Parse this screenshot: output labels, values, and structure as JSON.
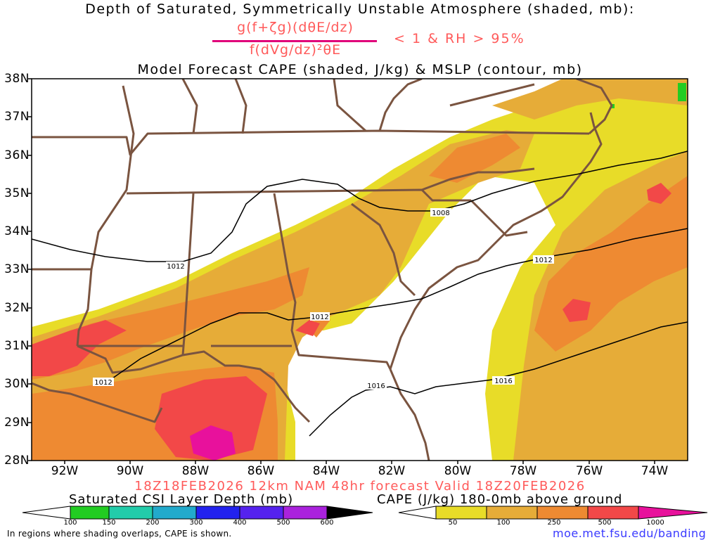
{
  "title": {
    "line1": "Depth of Saturated, Symmetrically Unstable Atmosphere (shaded, mb):",
    "numerator": "g(f+ζg)(dθE/dz)",
    "denominator": "f(dVg/dz)²θE",
    "condition": "< 1 & RH > 95%",
    "line3": "Model Forecast CAPE (shaded, J/kg) & MSLP (contour, mb)"
  },
  "map": {
    "lat_labels": [
      "38N",
      "37N",
      "36N",
      "35N",
      "34N",
      "33N",
      "32N",
      "31N",
      "30N",
      "29N",
      "28N"
    ],
    "lon_labels": [
      "92W",
      "90W",
      "88W",
      "86W",
      "84W",
      "82W",
      "80W",
      "78W",
      "76W",
      "74W"
    ],
    "isobar_labels": [
      {
        "id": "a",
        "text": "1012"
      },
      {
        "id": "b",
        "text": "1012"
      },
      {
        "id": "c",
        "text": "1012"
      },
      {
        "id": "d",
        "text": "1008"
      },
      {
        "id": "e",
        "text": "1016"
      },
      {
        "id": "f",
        "text": "1016"
      }
    ],
    "colors": {
      "border": "#7a5440",
      "isobar": "#000000",
      "cape_50": "#e8dc28",
      "cape_100": "#e6ac38",
      "cape_250": "#ee8a32",
      "cape_500": "#f24848",
      "cape_1000": "#e8119c"
    }
  },
  "valid_text": "18Z18FEB2026 12km NAM 48hr forecast Valid 18Z20FEB2026",
  "colorbar_csi": {
    "title": "Saturated CSI Layer Depth (mb)",
    "labels": [
      "100",
      "150",
      "200",
      "300",
      "400",
      "500",
      "600"
    ],
    "colors": [
      "#ffffff",
      "#22cc22",
      "#22ccaa",
      "#22aacc",
      "#2222ee",
      "#5522ee",
      "#aa22dd",
      "#000000"
    ]
  },
  "colorbar_cape": {
    "title": "CAPE (J/kg) 180-0mb above ground",
    "labels": [
      "50",
      "100",
      "250",
      "500",
      "1000"
    ],
    "colors": [
      "#ffffff",
      "#e8dc28",
      "#e6ac38",
      "#ee8a32",
      "#f24848",
      "#e8119c"
    ]
  },
  "footer": {
    "note": "In regions where shading overlaps, CAPE is shown.",
    "url": "moe.met.fsu.edu/banding"
  }
}
